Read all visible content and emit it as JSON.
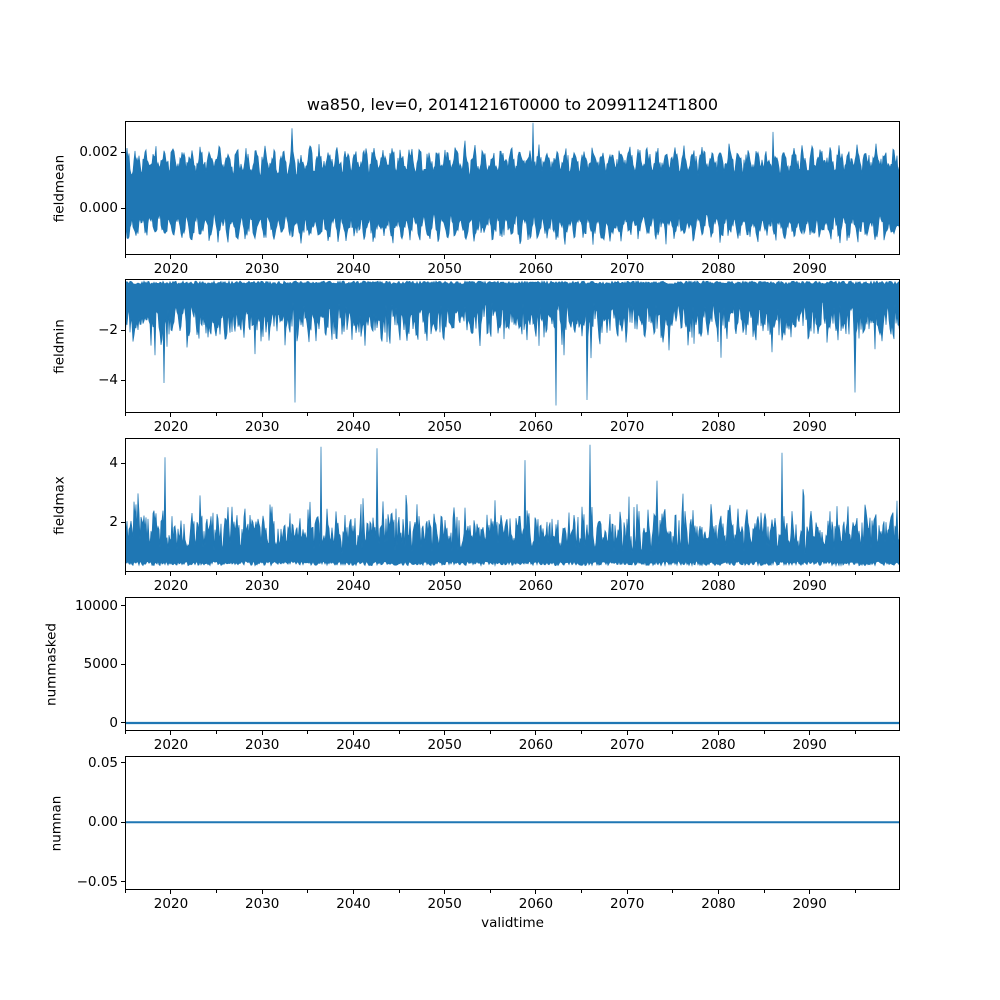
{
  "figure": {
    "title": "wa850, lev=0, 20141216T0000 to 20991124T1800",
    "xlabel": "validtime",
    "background": "#ffffff",
    "line_color": "#1f77b4",
    "axis_color": "#000000",
    "text_color": "#000000"
  },
  "x_axis": {
    "label": "validtime",
    "range": [
      2014.96,
      2099.9
    ],
    "major_ticks": [
      2020,
      2030,
      2040,
      2050,
      2060,
      2070,
      2080,
      2090
    ],
    "major_tick_labels": [
      "2020",
      "2030",
      "2040",
      "2050",
      "2060",
      "2070",
      "2080",
      "2090"
    ],
    "minor_ticks": [
      2015,
      2025,
      2035,
      2045,
      2055,
      2065,
      2075,
      2085,
      2095
    ]
  },
  "chart_data": [
    {
      "type": "line",
      "name": "fieldmean",
      "ylabel": "fieldmean",
      "ylim": [
        -0.00168,
        0.00311
      ],
      "yticks": [
        0.0,
        0.002
      ],
      "ytick_labels": [
        "0.000",
        "0.002"
      ],
      "show_xticklabels": true,
      "series": {
        "color": "#1f77b4",
        "style": "dense-noisy-band",
        "observed": {
          "typical_low": -0.0013,
          "typical_high": 0.0024,
          "min": -0.0016,
          "max": 0.003,
          "seasonal_period_years": 1
        },
        "gen": {
          "mode": "mean",
          "seed": 101,
          "center": 0.0005,
          "center_noise": 0.0004,
          "half_base": 0.00075,
          "season_amp": 0.00055,
          "half_noise": 0.00035,
          "phase": 0.0,
          "spike_prob": 0.012,
          "spike_scale": 0.00045,
          "clamp": [
            -0.00165,
            0.00305
          ],
          "forced_spikes": [
            {
              "x": 2059.7,
              "v": 0.00305
            },
            {
              "x": 2033.3,
              "v": 0.00285
            },
            {
              "x": 2086.0,
              "v": 0.00272
            }
          ]
        }
      }
    },
    {
      "type": "line",
      "name": "fieldmin",
      "ylabel": "fieldmin",
      "ylim": [
        -5.32,
        0.04
      ],
      "yticks": [
        -4,
        -2
      ],
      "ytick_labels": [
        "−4",
        "−2"
      ],
      "show_xticklabels": true,
      "series": {
        "color": "#1f77b4",
        "style": "dense-noisy-band",
        "observed": {
          "typical_low": -2.6,
          "typical_high": -0.1,
          "min": -5.0,
          "max": -0.05,
          "deep_spikes": [
            -5.0,
            -4.9,
            -4.8
          ]
        },
        "gen": {
          "mode": "min",
          "seed": 202,
          "top_base": -0.04,
          "top_noise": 0.13,
          "base": 0.8,
          "u1": 1.0,
          "u2": 0.5,
          "season_amp": 0.45,
          "phase": 2.0,
          "spike_prob": 0.1,
          "spike_scale": 1.2,
          "rare_prob": 0.012,
          "rare_scale": 1.5,
          "max_depth": 5.05,
          "forced_spikes": [
            {
              "x": 2062.2,
              "v": -5.02
            },
            {
              "x": 2033.6,
              "v": -4.9
            },
            {
              "x": 2065.6,
              "v": -4.8
            },
            {
              "x": 2019.2,
              "v": -4.12
            },
            {
              "x": 2095.0,
              "v": -4.5
            }
          ]
        }
      }
    },
    {
      "type": "line",
      "name": "fieldmax",
      "ylabel": "fieldmax",
      "ylim": [
        0.305,
        4.85
      ],
      "yticks": [
        2,
        4
      ],
      "ytick_labels": [
        "2",
        "4"
      ],
      "show_xticklabels": true,
      "series": {
        "color": "#1f77b4",
        "style": "dense-noisy-band",
        "observed": {
          "typical_low": 0.6,
          "typical_high": 2.8,
          "min": 0.5,
          "max": 4.65,
          "tall_spikes": [
            4.65,
            4.55,
            4.5
          ]
        },
        "gen": {
          "mode": "max",
          "seed": 303,
          "bot_base": 0.52,
          "bot_noise": 0.15,
          "base": 0.85,
          "u1": 0.95,
          "u2": 0.5,
          "season_amp": 0.4,
          "phase": 0.8,
          "spike_prob": 0.1,
          "spike_scale": 1.1,
          "rare_prob": 0.012,
          "rare_scale": 1.4,
          "max_height": 4.7,
          "forced_spikes": [
            {
              "x": 2065.9,
              "v": 4.62
            },
            {
              "x": 2036.4,
              "v": 4.55
            },
            {
              "x": 2042.6,
              "v": 4.5
            },
            {
              "x": 2019.3,
              "v": 4.2
            },
            {
              "x": 2087.0,
              "v": 4.35
            },
            {
              "x": 2058.8,
              "v": 4.1
            }
          ]
        }
      }
    },
    {
      "type": "line",
      "name": "nummasked",
      "ylabel": "nummasked",
      "ylim": [
        -684,
        10769
      ],
      "yticks": [
        0,
        5000,
        10000
      ],
      "ytick_labels": [
        "0",
        "5000",
        "10000"
      ],
      "show_xticklabels": true,
      "series": {
        "color": "#1f77b4",
        "style": "flat-line",
        "observed": {
          "constant_value": 0
        },
        "gen": {
          "mode": "flat",
          "value": 0,
          "stroke_width": 2.2
        }
      }
    },
    {
      "type": "line",
      "name": "numnan",
      "ylabel": "numnan",
      "ylim": [
        -0.057,
        0.0557
      ],
      "yticks": [
        -0.05,
        0.0,
        0.05
      ],
      "ytick_labels": [
        "−0.05",
        "0.00",
        "0.05"
      ],
      "show_xticklabels": true,
      "series": {
        "color": "#1f77b4",
        "style": "flat-line",
        "observed": {
          "constant_value": 0
        },
        "gen": {
          "mode": "flat",
          "value": 0,
          "stroke_width": 2.0
        }
      }
    }
  ]
}
